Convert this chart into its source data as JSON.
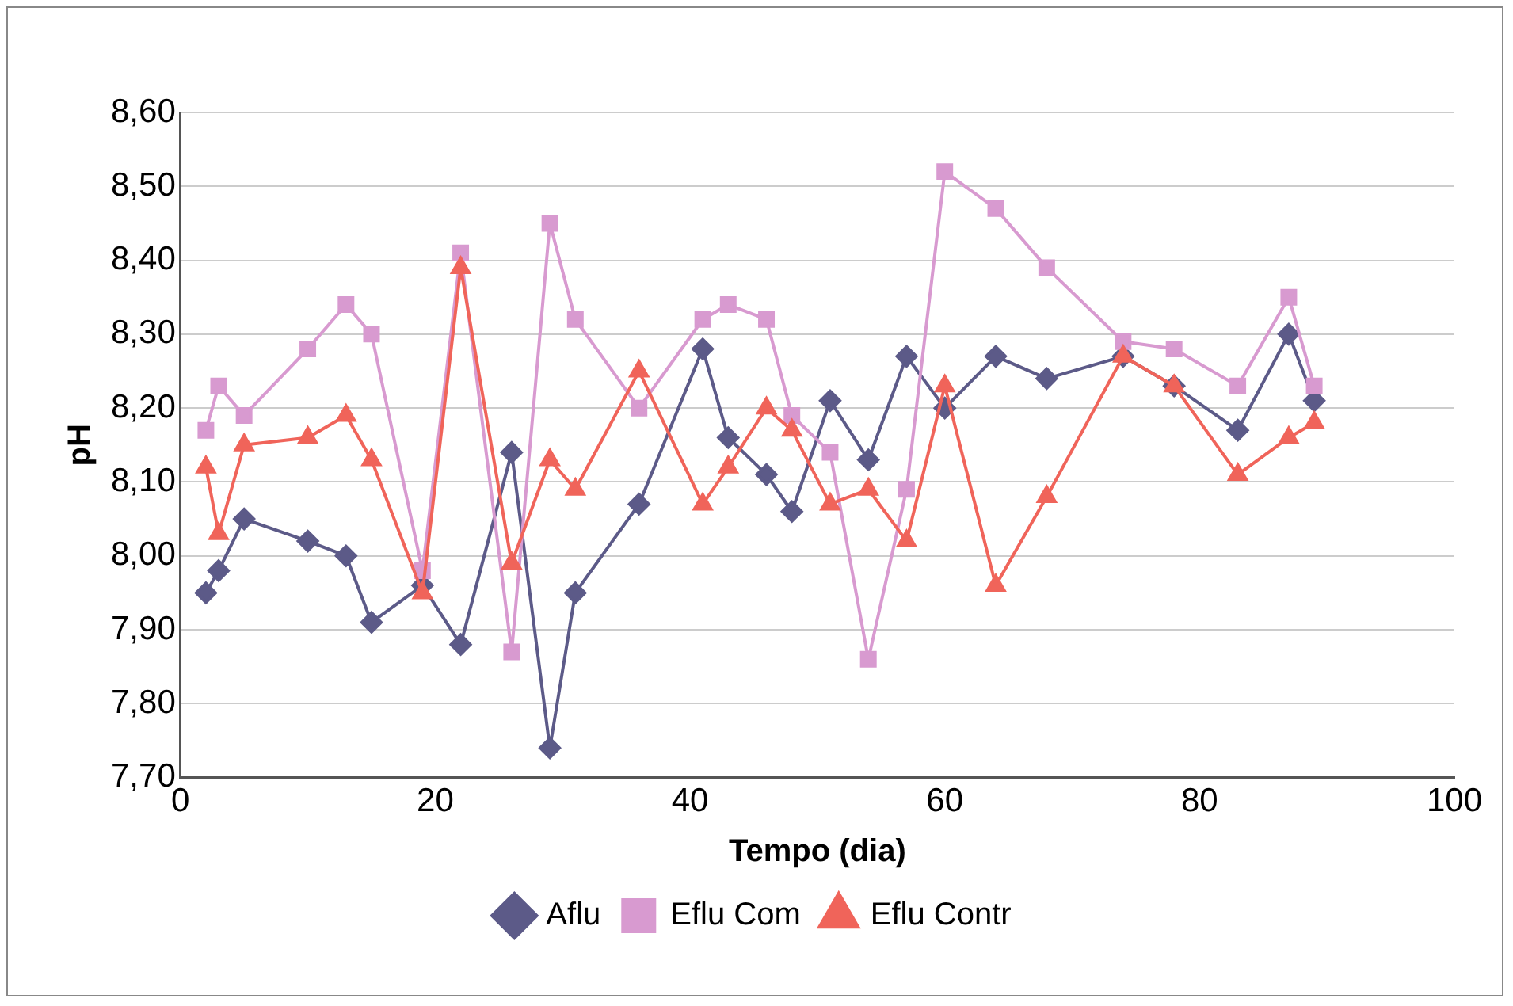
{
  "chart_data": {
    "type": "line",
    "xlabel": "Tempo (dia)",
    "ylabel": "pH",
    "xlim": [
      0,
      100
    ],
    "xticks": [
      0,
      20,
      40,
      60,
      80,
      100
    ],
    "ylim": [
      7.7,
      8.6
    ],
    "yticks": [
      {
        "value": 7.7,
        "label": "7,70"
      },
      {
        "value": 7.8,
        "label": "7,80"
      },
      {
        "value": 7.9,
        "label": "7,90"
      },
      {
        "value": 8.0,
        "label": "8,00"
      },
      {
        "value": 8.1,
        "label": "8,10"
      },
      {
        "value": 8.2,
        "label": "8,20"
      },
      {
        "value": 8.3,
        "label": "8,30"
      },
      {
        "value": 8.4,
        "label": "8,40"
      },
      {
        "value": 8.5,
        "label": "8,50"
      },
      {
        "value": 8.6,
        "label": "8,60"
      }
    ],
    "grid": "y",
    "legend": "bottom",
    "x": [
      2,
      3,
      5,
      10,
      13,
      15,
      19,
      22,
      26,
      29,
      31,
      36,
      41,
      43,
      46,
      48,
      51,
      54,
      57,
      60,
      64,
      68,
      74,
      78,
      83,
      87,
      89
    ],
    "series": [
      {
        "name": "Aflu",
        "color": "#5c5a88",
        "marker": "diamond",
        "values": [
          7.95,
          7.98,
          8.05,
          8.02,
          8.0,
          7.91,
          7.96,
          7.88,
          8.14,
          7.74,
          7.95,
          8.07,
          8.28,
          8.16,
          8.11,
          8.06,
          8.21,
          8.13,
          8.27,
          8.2,
          8.27,
          8.24,
          8.27,
          8.23,
          8.17,
          8.3,
          8.21
        ]
      },
      {
        "name": "Eflu Com",
        "color": "#d89ad0",
        "marker": "square",
        "values": [
          8.17,
          8.23,
          8.19,
          8.28,
          8.34,
          8.3,
          7.98,
          8.41,
          7.87,
          8.45,
          8.32,
          8.2,
          8.32,
          8.34,
          8.32,
          8.19,
          8.14,
          7.86,
          8.09,
          8.52,
          8.47,
          8.39,
          8.29,
          8.28,
          8.23,
          8.35,
          8.23
        ]
      },
      {
        "name": "Eflu Contr",
        "color": "#f0645a",
        "marker": "triangle",
        "values": [
          8.12,
          8.03,
          8.15,
          8.16,
          8.19,
          8.13,
          7.95,
          8.39,
          7.99,
          8.13,
          8.09,
          8.25,
          8.07,
          8.12,
          8.2,
          8.17,
          8.07,
          8.09,
          8.02,
          8.23,
          7.96,
          8.08,
          8.27,
          8.23,
          8.11,
          8.16,
          8.18
        ]
      }
    ]
  }
}
